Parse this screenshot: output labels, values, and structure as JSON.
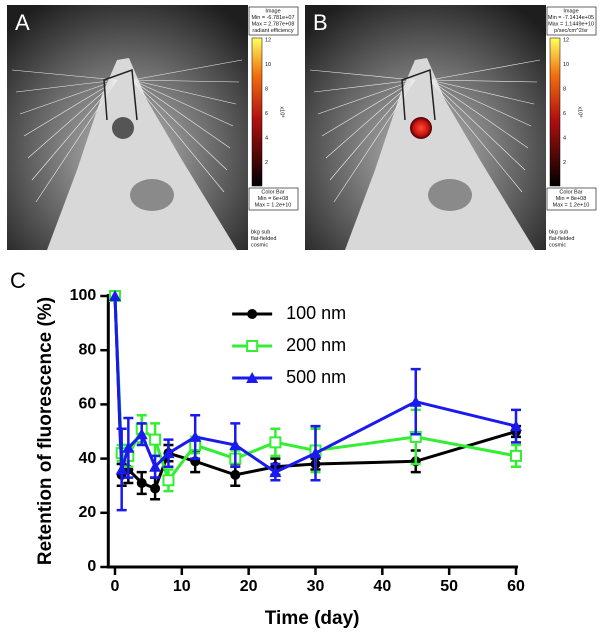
{
  "panels": [
    {
      "label": "A",
      "header": [
        "Image",
        "Min = -6.781e+07",
        "Max = 2.787e+08",
        "radiant efficiency"
      ],
      "scale_ticks": [
        "12",
        "10",
        "8",
        "6",
        "4",
        "2"
      ],
      "exponent": "x10⁸",
      "colorbar": [
        "Color Bar",
        "Min = 6e+08",
        "Max = 1.2e+10"
      ],
      "footer": [
        "bkg sub",
        "flat-fielded",
        "cosmic"
      ]
    },
    {
      "label": "B",
      "header": [
        "Image",
        "Min = -7.1414e+05",
        "Max = 1.1449e+10",
        "p/sec/cm^2/sr"
      ],
      "scale_ticks": [
        "12",
        "10",
        "8",
        "6",
        "4",
        "2"
      ],
      "exponent": "x10⁸",
      "colorbar": [
        "Color Bar",
        "Min = 8e+08",
        "Max = 1.2e+10"
      ],
      "footer": [
        "bkg sub",
        "flat-fielded",
        "cosmic"
      ]
    }
  ],
  "chart_data": {
    "type": "line",
    "panel_label": "C",
    "x_label": "Time (day)",
    "y_label": "Retention of fluorescence (%)",
    "x": [
      0,
      1,
      2,
      4,
      6,
      8,
      12,
      18,
      24,
      30,
      45,
      60
    ],
    "series": [
      {
        "name": "100 nm",
        "color": "#000000",
        "marker": "circle",
        "values": [
          100,
          34,
          36,
          31,
          29,
          42,
          39,
          34,
          37,
          38,
          39,
          50
        ],
        "errors": [
          null,
          4,
          5,
          4,
          4,
          3,
          4,
          4,
          3,
          2,
          4,
          2
        ]
      },
      {
        "name": "200 nm",
        "color": "#33ee33",
        "marker": "square",
        "values": [
          100,
          42,
          41,
          51,
          47,
          32,
          45,
          40,
          46,
          43,
          48,
          41
        ],
        "errors": [
          null,
          3,
          4,
          5,
          6,
          4,
          3,
          3,
          5,
          8,
          10,
          4
        ]
      },
      {
        "name": "500 nm",
        "color": "#1a1aee",
        "marker": "triangle",
        "values": [
          100,
          36,
          44,
          49,
          37,
          42,
          48,
          45,
          35,
          42,
          61,
          52
        ],
        "errors": [
          null,
          15,
          11,
          4,
          4,
          5,
          8,
          8,
          3,
          10,
          12,
          6
        ]
      }
    ],
    "xlim": [
      -1,
      60
    ],
    "ylim": [
      0,
      100
    ],
    "xticks": [
      0,
      10,
      20,
      30,
      40,
      50,
      60
    ],
    "yticks": [
      0,
      20,
      40,
      60,
      80,
      100
    ],
    "legend": "upper center"
  }
}
